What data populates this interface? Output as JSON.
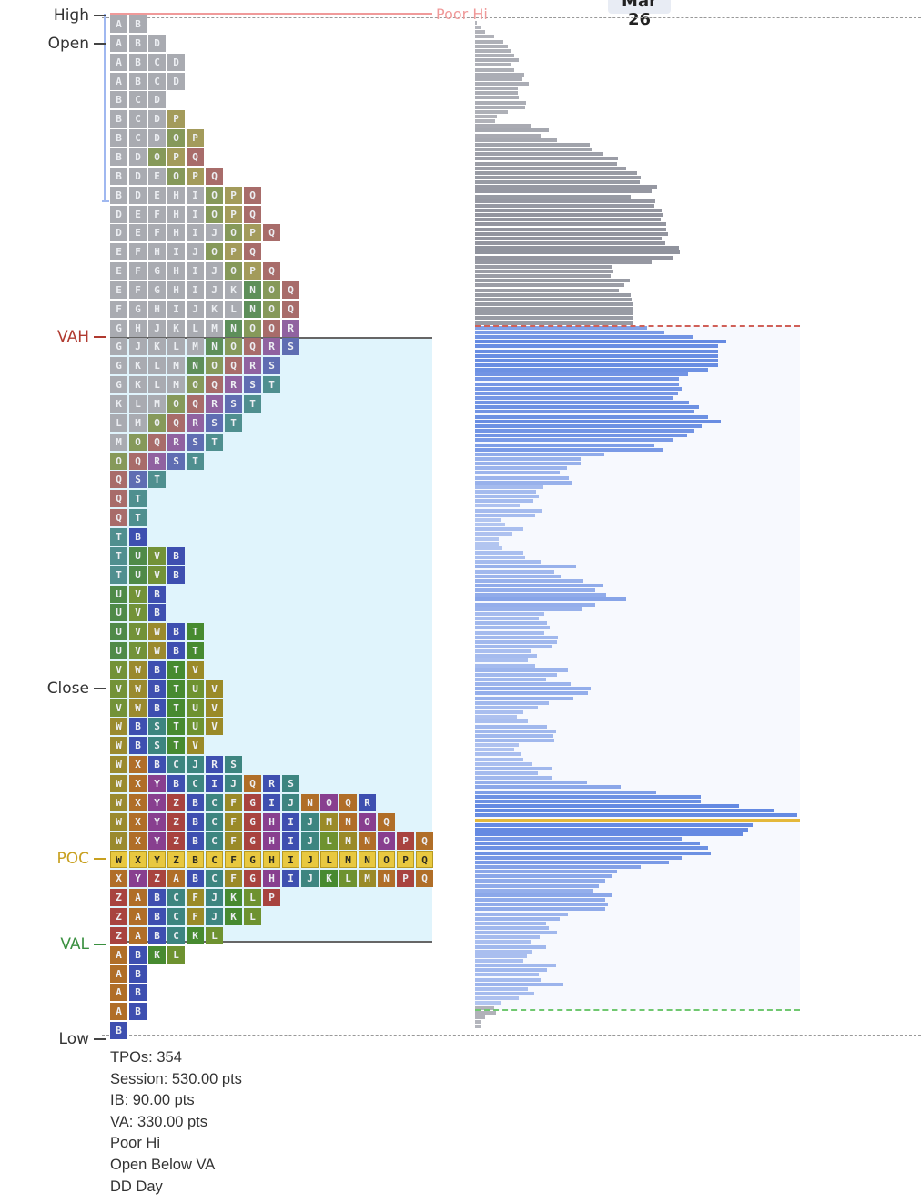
{
  "chart_data": {
    "type": "tpo-profile",
    "date_label": "Mar 26",
    "level_labels": {
      "high": "High",
      "open": "Open",
      "vah": "VAH",
      "close": "Close",
      "poc": "POC",
      "val": "VAL",
      "low": "Low"
    },
    "poor_hi_label": "Poor Hi",
    "colors": {
      "vah": "#b03a30",
      "poc": "#c8a020",
      "val": "#3a9040",
      "poor_hi": "#f09a9a",
      "ib_bracket": "#a0b8f0",
      "va_bg_left": "#e0f4fc",
      "va_bg_right": "#f7f9fe",
      "gray_tpo": "#a9abb1"
    },
    "tpo_rows": [
      "A B",
      "A B D",
      "A B C D",
      "A B C D",
      "B C D",
      "B C D P",
      "B C D O P",
      "B D O P Q",
      "B D E O P Q",
      "B D E H I O P Q",
      "D E F H I O P Q",
      "D E F H I J O P Q",
      "E F H I J O P Q",
      "E F G H I J O P Q",
      "E F G H I J K N O Q",
      "F G H I J K L N O Q",
      "G H J K L M N O Q R",
      "G J K L M N O Q R S",
      "G K L M N O Q R S",
      "G K L M O Q R S T",
      "K L M O Q R S T",
      "L M O Q R S T",
      "M O Q R S T",
      "O Q R S T",
      "Q S T",
      "Q T",
      "Q T",
      "T b",
      "T U V b",
      "T U V b",
      "U V b",
      "U V b",
      "U V W b t",
      "U V W b t",
      "V W b t v",
      "V W b t u v",
      "V W b t u v",
      "W b s t u v",
      "W b s t v",
      "W X b c j r s",
      "W X Y b c i j q r s",
      "W X Y Z b c f g i j n o q r",
      "W X Y Z b c f g h i j m n o q",
      "W X Y Z b c f g h i j l m n o p q",
      "W X Y Z b c f g h i j l m n o p q",
      "X Y Z a b c f g h i j k l m n p q",
      "Z a b c f j k l p",
      "Z a b c f j k l",
      "Z a b c k l",
      "a b k l",
      "a b",
      "a b",
      "a b",
      "b"
    ],
    "tpo_colors": {
      "N": "#5e8f5a",
      "O": "#86995a",
      "P": "#a39b5b",
      "Q": "#a86c6a",
      "R": "#9062a0",
      "S": "#5f6db2",
      "T": "#4f8f8f",
      "U": "#4f8a48",
      "V": "#739238",
      "W": "#9a8a2e",
      "X": "#b06e28",
      "Y": "#883f8f",
      "Z": "#a8433f",
      "a": "#b06e28",
      "b": "#3e4fb0",
      "c": "#3d8580",
      "f": "#9a8a28",
      "g": "#a8433f",
      "h": "#883f8f",
      "i": "#3e4fb0",
      "j": "#3d8580",
      "k": "#478a30",
      "l": "#6e9230",
      "m": "#9a8a28",
      "n": "#b06e28",
      "o": "#883f8f",
      "p": "#a8433f",
      "q": "#b06e28",
      "r": "#3e4fb0",
      "s": "#3d8580",
      "t": "#478a30",
      "u": "#6e9230",
      "v": "#9a8a28"
    },
    "volume_profile": {
      "above_va": [
        2,
        6,
        11,
        21,
        31,
        36,
        40,
        43,
        48,
        39,
        43,
        54,
        52,
        59,
        47,
        47,
        48,
        56,
        55,
        36,
        24,
        22,
        62,
        81,
        72,
        90,
        126,
        128,
        141,
        157,
        156,
        166,
        178,
        182,
        181,
        200,
        194,
        171,
        198,
        197,
        205,
        207,
        204,
        210,
        210,
        212,
        205,
        209,
        224,
        225,
        217,
        194,
        151,
        152,
        149,
        170,
        164,
        158,
        171,
        172,
        174,
        174,
        174,
        174,
        174
      ],
      "value_area": [
        189,
        208,
        240,
        276,
        267,
        267,
        267,
        267,
        267,
        256,
        234,
        224,
        224,
        227,
        223,
        218,
        235,
        246,
        241,
        256,
        270,
        249,
        241,
        233,
        217,
        197,
        207,
        142,
        116,
        116,
        101,
        93,
        103,
        106,
        75,
        67,
        70,
        64,
        49,
        74,
        66,
        28,
        33,
        53,
        41,
        26,
        26,
        30,
        53,
        55,
        73,
        111,
        87,
        94,
        119,
        141,
        132,
        144,
        166,
        132,
        118,
        76,
        70,
        79,
        82,
        76,
        91,
        90,
        84,
        62,
        68,
        58,
        66,
        102,
        90,
        78,
        105,
        127,
        124,
        108,
        81,
        69,
        53,
        46,
        58,
        79,
        89,
        86,
        87,
        48,
        43,
        50,
        53,
        63,
        85,
        69,
        85,
        123,
        160,
        199,
        248,
        248,
        290,
        328,
        354,
        357,
        305,
        300,
        294,
        227,
        247,
        256,
        259,
        227,
        213,
        182,
        156,
        150,
        143,
        136,
        130,
        151,
        143,
        146,
        143,
        102,
        93,
        78,
        81,
        90,
        71,
        62,
        78,
        63,
        57,
        53,
        89,
        79,
        70,
        73,
        97,
        58,
        65,
        48,
        28
      ],
      "below_va": [
        21,
        23,
        11,
        6,
        6
      ]
    }
  },
  "stats": [
    "TPOs: 354",
    "Session: 530.00 pts",
    "IB: 90.00 pts",
    "VA: 330.00 pts",
    "Poor Hi",
    "Open Below VA",
    "DD Day"
  ]
}
